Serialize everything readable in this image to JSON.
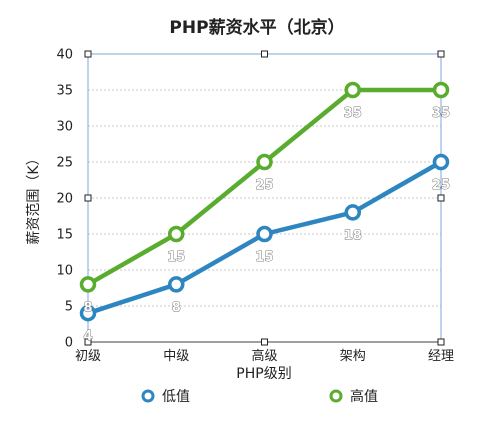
{
  "chart_data": {
    "type": "line",
    "title": "PHP薪资水平（北京）",
    "xlabel": "PHP级别",
    "ylabel": "薪资范围（K）",
    "categories": [
      "初级",
      "中级",
      "高级",
      "架构",
      "经理"
    ],
    "ylim": [
      0,
      40
    ],
    "yticks": [
      0,
      5,
      10,
      15,
      20,
      25,
      30,
      35,
      40
    ],
    "grid": true,
    "legend_position": "bottom",
    "series": [
      {
        "name": "低值",
        "color": "#2e86c1",
        "values": [
          4,
          8,
          15,
          18,
          25
        ],
        "labels": [
          "4",
          "8",
          "15",
          "18",
          "25"
        ]
      },
      {
        "name": "高值",
        "color": "#5aac2f",
        "values": [
          8,
          15,
          25,
          35,
          35
        ],
        "labels": [
          "8",
          "15",
          "25",
          "35",
          "35"
        ]
      }
    ]
  }
}
